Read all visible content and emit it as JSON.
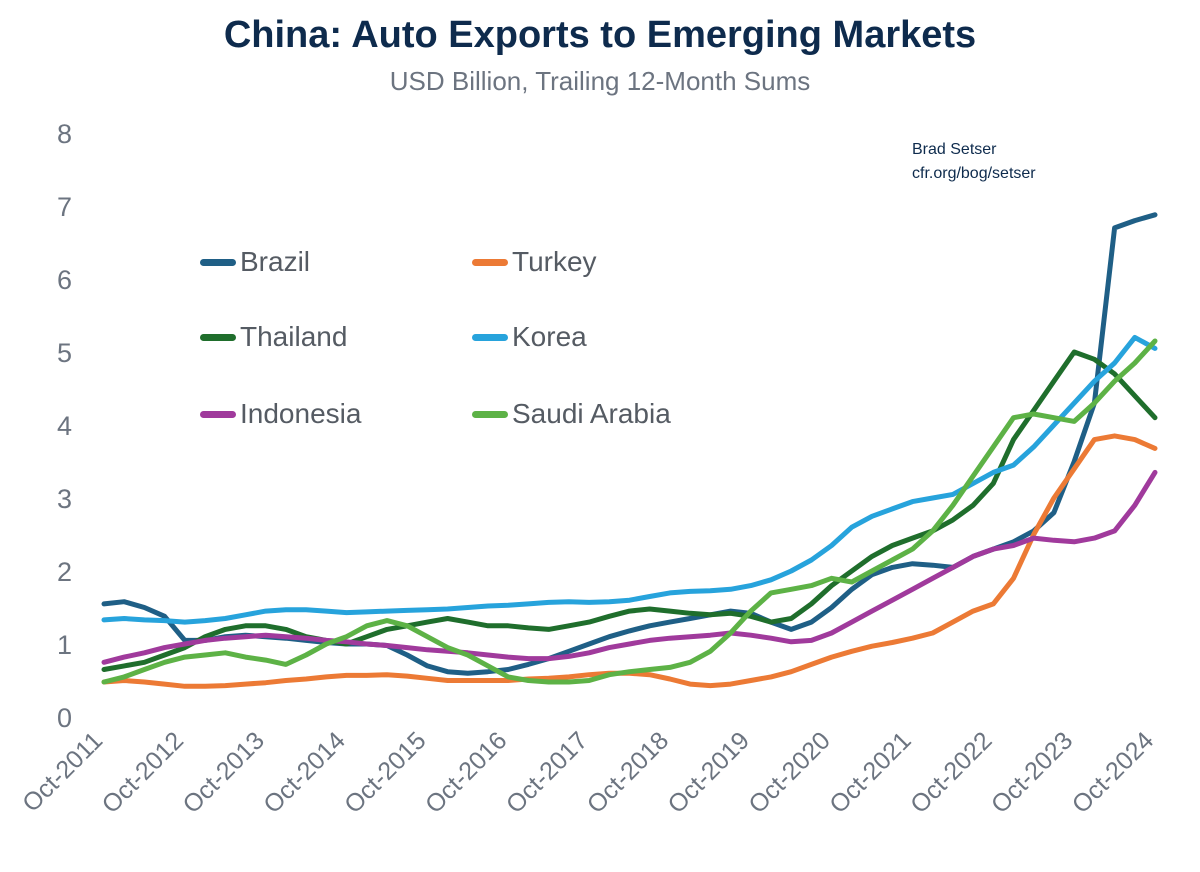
{
  "chart_data": {
    "type": "line",
    "title": "China: Auto Exports to Emerging Markets",
    "subtitle": "USD Billion, Trailing 12-Month Sums",
    "source": [
      "Brad Setser",
      "cfr.org/bog/setser"
    ],
    "xlabel": "",
    "ylabel": "",
    "ylim": [
      0,
      8
    ],
    "yticks": [
      0,
      1,
      2,
      3,
      4,
      5,
      6,
      7,
      8
    ],
    "xticks": [
      "Oct-2011",
      "Oct-2012",
      "Oct-2013",
      "Oct-2014",
      "Oct-2015",
      "Oct-2016",
      "Oct-2017",
      "Oct-2018",
      "Oct-2019",
      "Oct-2020",
      "Oct-2021",
      "Oct-2022",
      "Oct-2023",
      "Oct-2024"
    ],
    "x": [
      "Oct-2011",
      "Jan-2012",
      "Apr-2012",
      "Jul-2012",
      "Oct-2012",
      "Jan-2013",
      "Apr-2013",
      "Jul-2013",
      "Oct-2013",
      "Jan-2014",
      "Apr-2014",
      "Jul-2014",
      "Oct-2014",
      "Jan-2015",
      "Apr-2015",
      "Jul-2015",
      "Oct-2015",
      "Jan-2016",
      "Apr-2016",
      "Jul-2016",
      "Oct-2016",
      "Jan-2017",
      "Apr-2017",
      "Jul-2017",
      "Oct-2017",
      "Jan-2018",
      "Apr-2018",
      "Jul-2018",
      "Oct-2018",
      "Jan-2019",
      "Apr-2019",
      "Jul-2019",
      "Oct-2019",
      "Jan-2020",
      "Apr-2020",
      "Jul-2020",
      "Oct-2020",
      "Jan-2021",
      "Apr-2021",
      "Jul-2021",
      "Oct-2021",
      "Jan-2022",
      "Apr-2022",
      "Jul-2022",
      "Oct-2022",
      "Jan-2023",
      "Apr-2023",
      "Jul-2023",
      "Oct-2023",
      "Jan-2024",
      "Apr-2024",
      "Jul-2024",
      "Oct-2024"
    ],
    "grid": false,
    "legend_position": "upper-left",
    "series": [
      {
        "name": "Brazil",
        "color": "#1f5f86",
        "values": [
          1.55,
          1.58,
          1.5,
          1.38,
          1.05,
          1.05,
          1.1,
          1.12,
          1.1,
          1.08,
          1.05,
          1.02,
          1.0,
          1.0,
          0.98,
          0.85,
          0.7,
          0.62,
          0.6,
          0.62,
          0.65,
          0.72,
          0.8,
          0.9,
          1.0,
          1.1,
          1.18,
          1.25,
          1.3,
          1.35,
          1.4,
          1.45,
          1.42,
          1.3,
          1.2,
          1.3,
          1.5,
          1.75,
          1.95,
          2.05,
          2.1,
          2.08,
          2.05,
          2.2,
          2.3,
          2.4,
          2.55,
          2.8,
          3.5,
          4.3,
          6.7,
          6.8,
          6.88
        ]
      },
      {
        "name": "Turkey",
        "color": "#ec7a35",
        "values": [
          0.48,
          0.5,
          0.48,
          0.45,
          0.42,
          0.42,
          0.43,
          0.45,
          0.47,
          0.5,
          0.52,
          0.55,
          0.57,
          0.57,
          0.58,
          0.56,
          0.53,
          0.5,
          0.5,
          0.5,
          0.5,
          0.52,
          0.53,
          0.55,
          0.58,
          0.6,
          0.6,
          0.58,
          0.52,
          0.45,
          0.43,
          0.45,
          0.5,
          0.55,
          0.62,
          0.72,
          0.82,
          0.9,
          0.97,
          1.02,
          1.08,
          1.15,
          1.3,
          1.45,
          1.55,
          1.9,
          2.5,
          3.0,
          3.4,
          3.8,
          3.85,
          3.8,
          3.68
        ]
      },
      {
        "name": "Thailand",
        "color": "#1f6e2c",
        "values": [
          0.65,
          0.7,
          0.75,
          0.85,
          0.95,
          1.1,
          1.2,
          1.25,
          1.25,
          1.2,
          1.1,
          1.05,
          1.0,
          1.1,
          1.2,
          1.25,
          1.3,
          1.35,
          1.3,
          1.25,
          1.25,
          1.22,
          1.2,
          1.25,
          1.3,
          1.38,
          1.45,
          1.48,
          1.45,
          1.42,
          1.4,
          1.42,
          1.38,
          1.3,
          1.35,
          1.55,
          1.8,
          2.0,
          2.2,
          2.35,
          2.45,
          2.55,
          2.7,
          2.9,
          3.2,
          3.8,
          4.2,
          4.6,
          5.0,
          4.9,
          4.7,
          4.4,
          4.1
        ]
      },
      {
        "name": "Korea",
        "color": "#27a3dc",
        "values": [
          1.33,
          1.35,
          1.33,
          1.32,
          1.3,
          1.32,
          1.35,
          1.4,
          1.45,
          1.47,
          1.47,
          1.45,
          1.43,
          1.44,
          1.45,
          1.46,
          1.47,
          1.48,
          1.5,
          1.52,
          1.53,
          1.55,
          1.57,
          1.58,
          1.57,
          1.58,
          1.6,
          1.65,
          1.7,
          1.72,
          1.73,
          1.75,
          1.8,
          1.88,
          2.0,
          2.15,
          2.35,
          2.6,
          2.75,
          2.85,
          2.95,
          3.0,
          3.05,
          3.2,
          3.35,
          3.45,
          3.7,
          4.0,
          4.3,
          4.6,
          4.85,
          5.2,
          5.05
        ]
      },
      {
        "name": "Indonesia",
        "color": "#a03a9c",
        "values": [
          0.75,
          0.82,
          0.88,
          0.95,
          1.0,
          1.05,
          1.08,
          1.1,
          1.12,
          1.1,
          1.08,
          1.05,
          1.03,
          1.0,
          0.98,
          0.95,
          0.92,
          0.9,
          0.88,
          0.85,
          0.82,
          0.8,
          0.8,
          0.83,
          0.88,
          0.95,
          1.0,
          1.05,
          1.08,
          1.1,
          1.12,
          1.15,
          1.12,
          1.08,
          1.03,
          1.05,
          1.15,
          1.3,
          1.45,
          1.6,
          1.75,
          1.9,
          2.05,
          2.2,
          2.3,
          2.35,
          2.45,
          2.42,
          2.4,
          2.45,
          2.55,
          2.9,
          3.35
        ]
      },
      {
        "name": "Saudi Arabia",
        "color": "#5db246",
        "values": [
          0.48,
          0.55,
          0.65,
          0.75,
          0.82,
          0.85,
          0.88,
          0.82,
          0.78,
          0.72,
          0.85,
          1.0,
          1.1,
          1.25,
          1.32,
          1.25,
          1.1,
          0.95,
          0.85,
          0.7,
          0.55,
          0.5,
          0.48,
          0.48,
          0.5,
          0.58,
          0.62,
          0.65,
          0.68,
          0.75,
          0.9,
          1.15,
          1.45,
          1.7,
          1.75,
          1.8,
          1.9,
          1.85,
          2.0,
          2.15,
          2.3,
          2.55,
          2.9,
          3.3,
          3.7,
          4.1,
          4.15,
          4.1,
          4.05,
          4.3,
          4.6,
          4.85,
          5.15
        ]
      }
    ]
  }
}
